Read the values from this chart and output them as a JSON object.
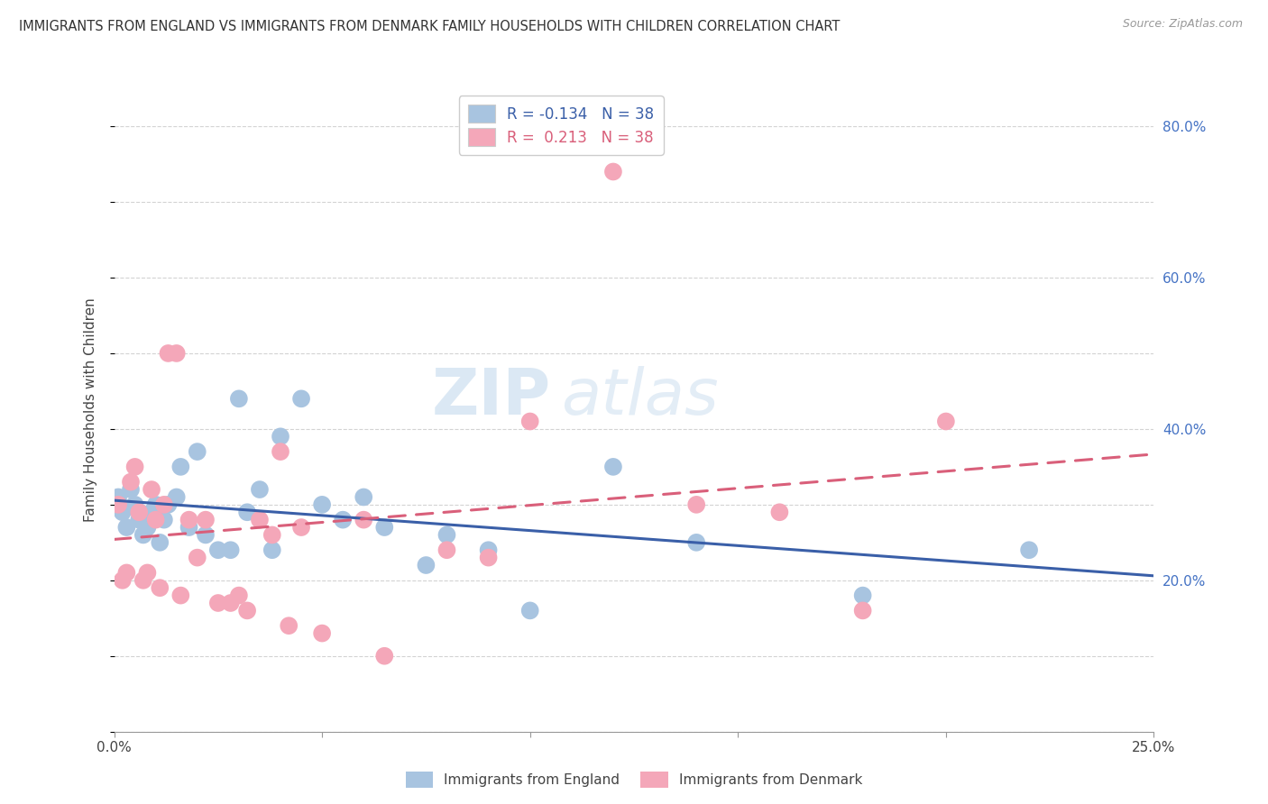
{
  "title": "IMMIGRANTS FROM ENGLAND VS IMMIGRANTS FROM DENMARK FAMILY HOUSEHOLDS WITH CHILDREN CORRELATION CHART",
  "source": "Source: ZipAtlas.com",
  "ylabel": "Family Households with Children",
  "xlim": [
    0.0,
    0.25
  ],
  "ylim": [
    0.0,
    0.85
  ],
  "england_color": "#a8c4e0",
  "denmark_color": "#f4a7b9",
  "england_line_color": "#3a5fa8",
  "denmark_line_color": "#d95f7a",
  "legend_r_england": "R = -0.134",
  "legend_n_england": "N = 38",
  "legend_r_denmark": "R =  0.213",
  "legend_n_denmark": "N = 38",
  "england_x": [
    0.001,
    0.002,
    0.003,
    0.004,
    0.005,
    0.006,
    0.007,
    0.008,
    0.009,
    0.01,
    0.011,
    0.012,
    0.013,
    0.015,
    0.016,
    0.018,
    0.02,
    0.022,
    0.025,
    0.028,
    0.03,
    0.032,
    0.035,
    0.038,
    0.04,
    0.045,
    0.05,
    0.055,
    0.06,
    0.065,
    0.075,
    0.08,
    0.09,
    0.1,
    0.12,
    0.14,
    0.18,
    0.22
  ],
  "england_y": [
    0.31,
    0.29,
    0.27,
    0.32,
    0.3,
    0.28,
    0.26,
    0.27,
    0.29,
    0.3,
    0.25,
    0.28,
    0.3,
    0.31,
    0.35,
    0.27,
    0.37,
    0.26,
    0.24,
    0.24,
    0.44,
    0.29,
    0.32,
    0.24,
    0.39,
    0.44,
    0.3,
    0.28,
    0.31,
    0.27,
    0.22,
    0.26,
    0.24,
    0.16,
    0.35,
    0.25,
    0.18,
    0.24
  ],
  "denmark_x": [
    0.001,
    0.002,
    0.003,
    0.004,
    0.005,
    0.006,
    0.007,
    0.008,
    0.009,
    0.01,
    0.011,
    0.012,
    0.013,
    0.015,
    0.016,
    0.018,
    0.02,
    0.022,
    0.025,
    0.028,
    0.03,
    0.032,
    0.035,
    0.038,
    0.04,
    0.042,
    0.045,
    0.05,
    0.06,
    0.065,
    0.08,
    0.09,
    0.1,
    0.12,
    0.14,
    0.16,
    0.18,
    0.2
  ],
  "denmark_y": [
    0.3,
    0.2,
    0.21,
    0.33,
    0.35,
    0.29,
    0.2,
    0.21,
    0.32,
    0.28,
    0.19,
    0.3,
    0.5,
    0.5,
    0.18,
    0.28,
    0.23,
    0.28,
    0.17,
    0.17,
    0.18,
    0.16,
    0.28,
    0.26,
    0.37,
    0.14,
    0.27,
    0.13,
    0.28,
    0.1,
    0.24,
    0.23,
    0.41,
    0.74,
    0.3,
    0.29,
    0.16,
    0.41
  ],
  "watermark_zip": "ZIP",
  "watermark_atlas": "atlas",
  "background_color": "#ffffff",
  "grid_color": "#c8c8c8"
}
